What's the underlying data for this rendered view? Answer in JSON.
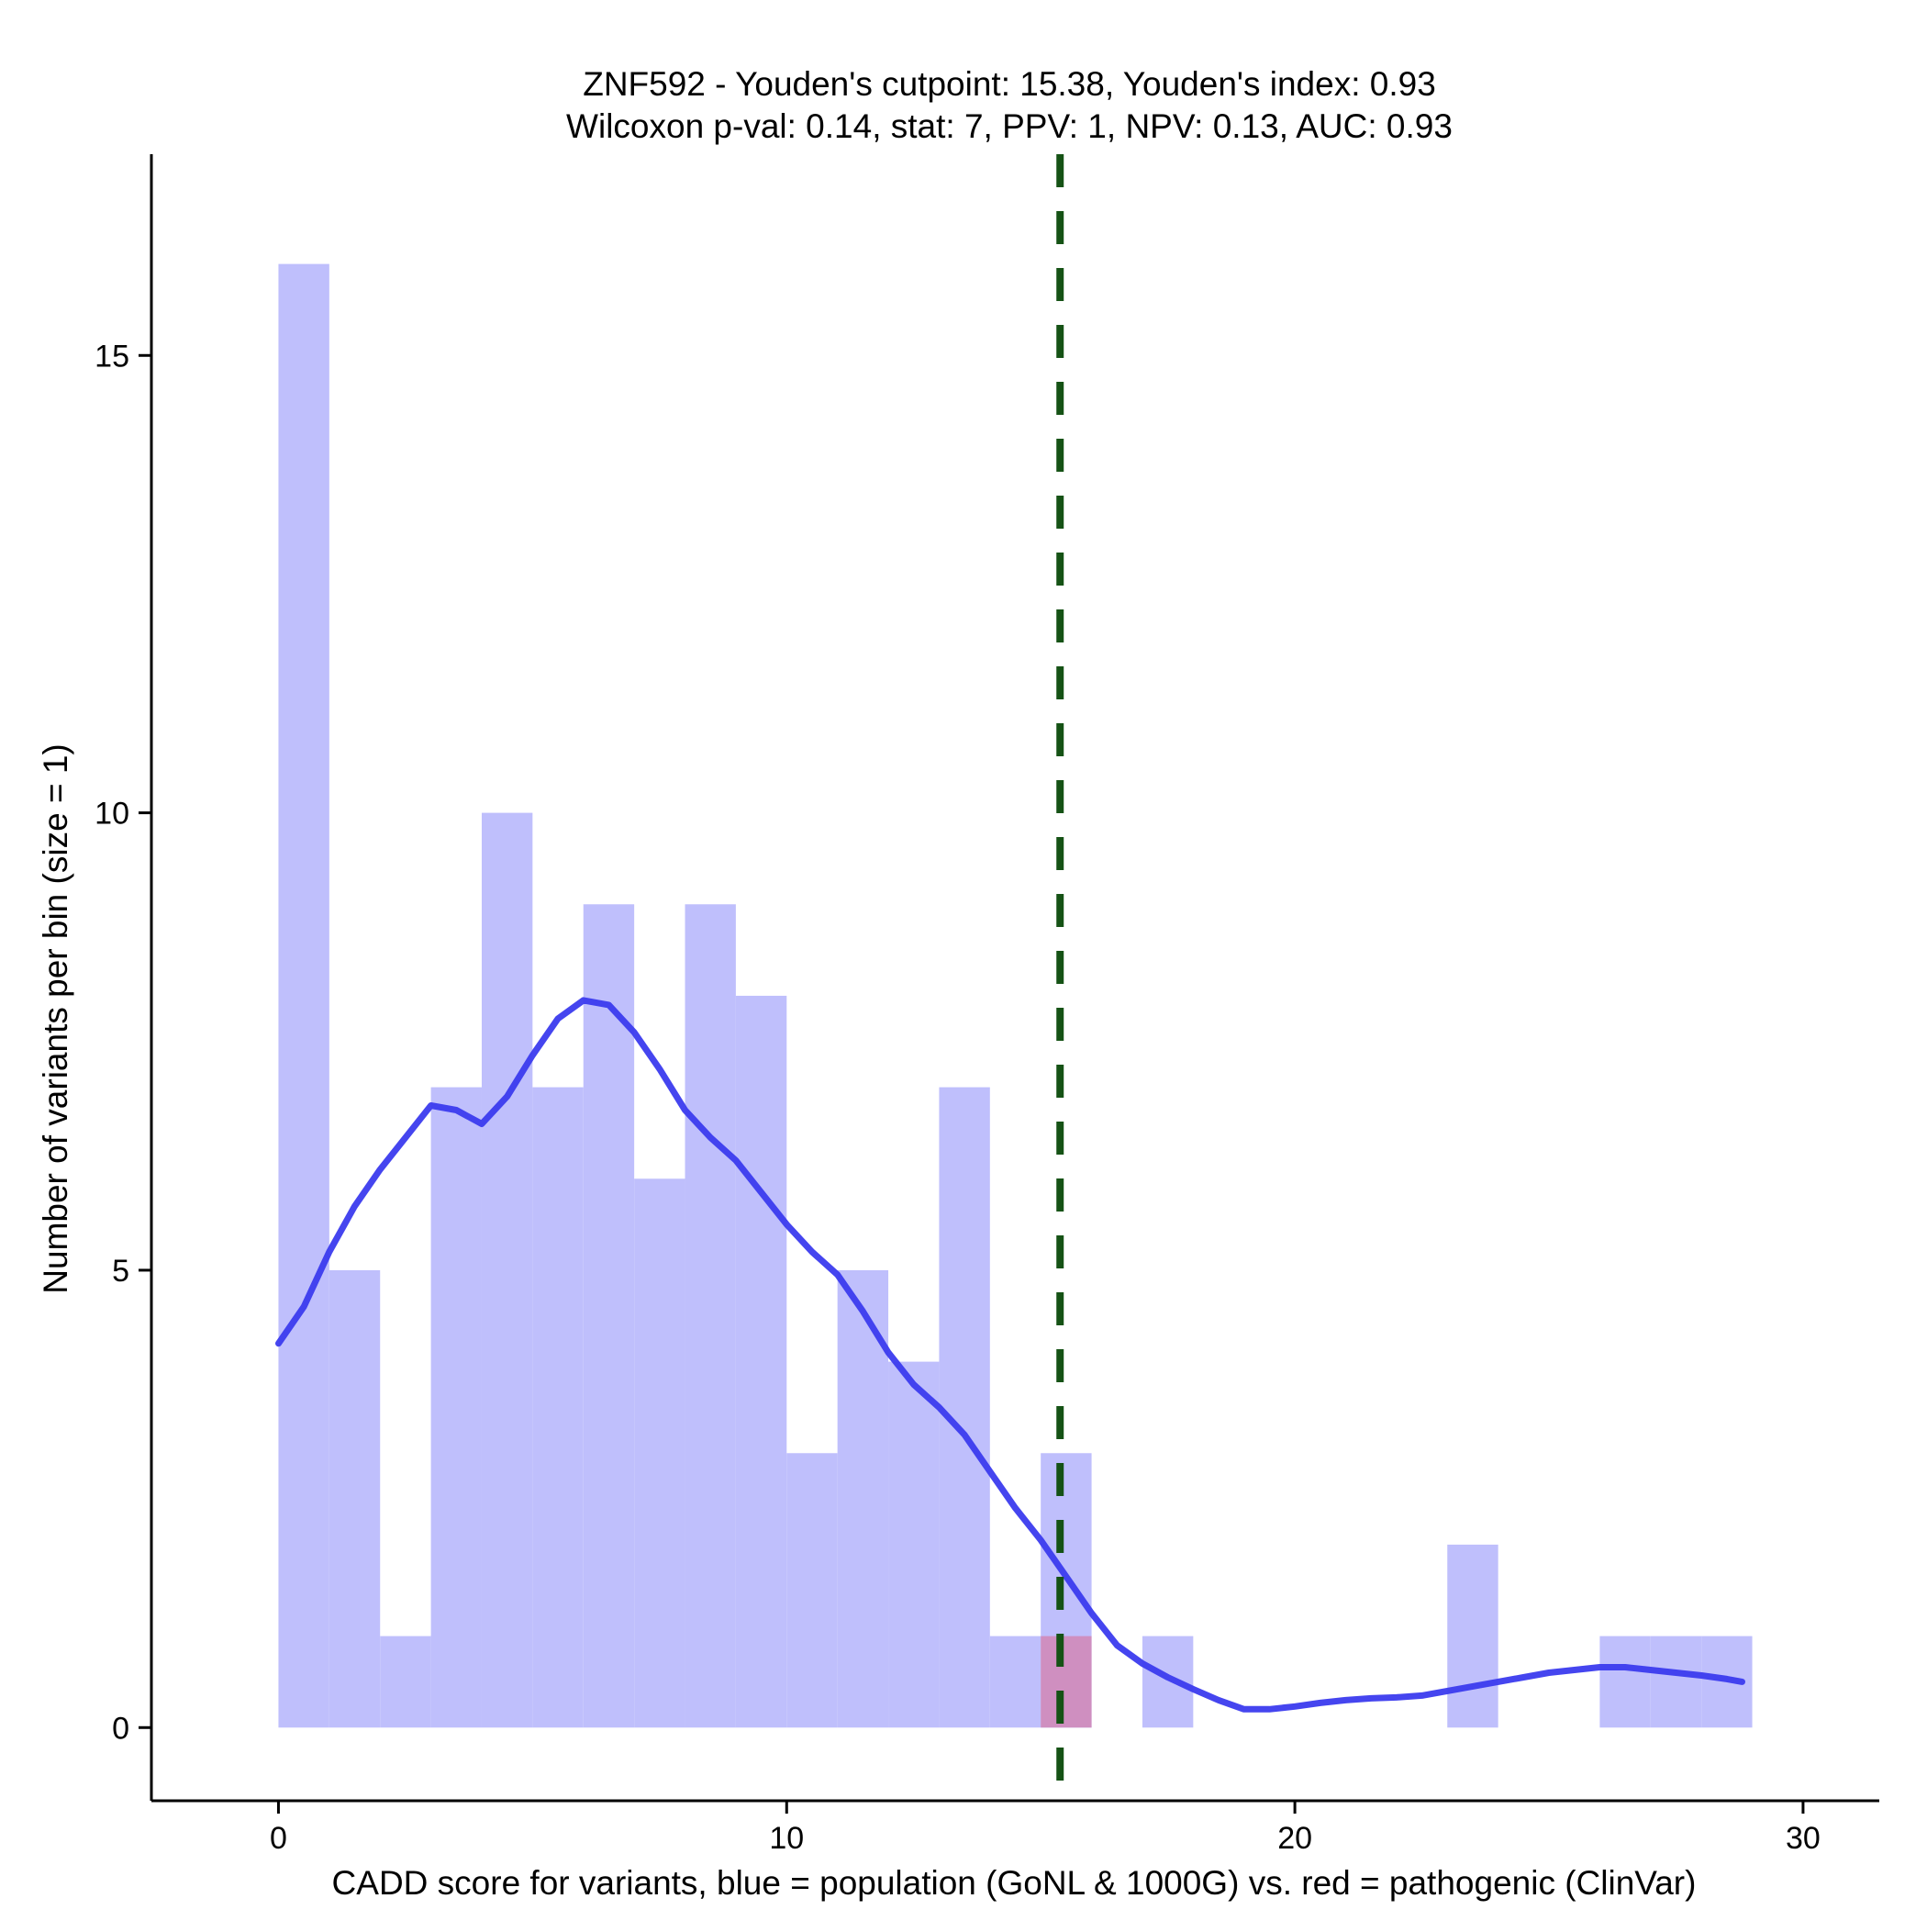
{
  "chart_data": {
    "type": "histogram",
    "title_line1": "ZNF592 - Youden's cutpoint: 15.38, Youden's index: 0.93",
    "title_line2": "Wilcoxon p-val: 0.14, stat: 7, PPV: 1, NPV: 0.13, AUC: 0.93",
    "xlabel": "CADD score for variants, blue = population (GoNL & 1000G) vs. red = pathogenic (ClinVar)",
    "ylabel": "Number of variants per bin (size = 1)",
    "xlim": [
      -2.5,
      31.5
    ],
    "ylim": [
      -0.8,
      17.2
    ],
    "x_ticks": [
      0,
      10,
      20,
      30
    ],
    "y_ticks": [
      0,
      5,
      10,
      15
    ],
    "bin_size": 1,
    "cutpoint": 15.38,
    "colors": {
      "population_bar": "#bfbffc",
      "pathogenic_bar": "#cf8fc0",
      "density_line": "#3b3bee",
      "cutpoint_line": "#155215"
    },
    "series": [
      {
        "name": "population (GoNL & 1000G)",
        "bins": [
          {
            "start": 0,
            "count": 16
          },
          {
            "start": 1,
            "count": 5
          },
          {
            "start": 2,
            "count": 1
          },
          {
            "start": 3,
            "count": 7
          },
          {
            "start": 4,
            "count": 10
          },
          {
            "start": 5,
            "count": 7
          },
          {
            "start": 6,
            "count": 9
          },
          {
            "start": 7,
            "count": 6
          },
          {
            "start": 8,
            "count": 9
          },
          {
            "start": 9,
            "count": 8
          },
          {
            "start": 10,
            "count": 3
          },
          {
            "start": 11,
            "count": 5
          },
          {
            "start": 12,
            "count": 4
          },
          {
            "start": 13,
            "count": 7
          },
          {
            "start": 14,
            "count": 1
          },
          {
            "start": 15,
            "count": 3
          },
          {
            "start": 17,
            "count": 1
          },
          {
            "start": 23,
            "count": 2
          },
          {
            "start": 26,
            "count": 1
          },
          {
            "start": 27,
            "count": 1
          },
          {
            "start": 28,
            "count": 1
          }
        ]
      },
      {
        "name": "pathogenic (ClinVar)",
        "bins": [
          {
            "start": 15,
            "count": 1
          }
        ]
      }
    ],
    "density_curve": {
      "name": "population density (scaled)",
      "x": [
        0,
        0.5,
        1,
        1.5,
        2,
        2.5,
        3,
        3.5,
        4,
        4.5,
        5,
        5.5,
        6,
        6.5,
        7,
        7.5,
        8,
        8.5,
        9,
        9.5,
        10,
        10.5,
        11,
        11.5,
        12,
        12.5,
        13,
        13.5,
        14,
        14.5,
        15,
        15.5,
        16,
        16.5,
        17,
        17.5,
        18,
        18.5,
        19,
        19.5,
        20,
        20.5,
        21,
        21.5,
        22,
        22.5,
        23,
        23.5,
        24,
        24.5,
        25,
        25.5,
        26,
        26.5,
        27,
        27.5,
        28,
        28.5,
        28.8
      ],
      "y": [
        4.2,
        4.6,
        5.2,
        5.7,
        6.1,
        6.45,
        6.8,
        6.75,
        6.6,
        6.9,
        7.35,
        7.75,
        7.95,
        7.9,
        7.6,
        7.2,
        6.75,
        6.45,
        6.2,
        5.85,
        5.5,
        5.2,
        4.95,
        4.55,
        4.1,
        3.75,
        3.5,
        3.2,
        2.8,
        2.4,
        2.05,
        1.65,
        1.25,
        0.9,
        0.7,
        0.55,
        0.42,
        0.3,
        0.2,
        0.2,
        0.23,
        0.27,
        0.3,
        0.32,
        0.33,
        0.35,
        0.4,
        0.45,
        0.5,
        0.55,
        0.6,
        0.63,
        0.66,
        0.66,
        0.63,
        0.6,
        0.57,
        0.53,
        0.5
      ]
    }
  }
}
